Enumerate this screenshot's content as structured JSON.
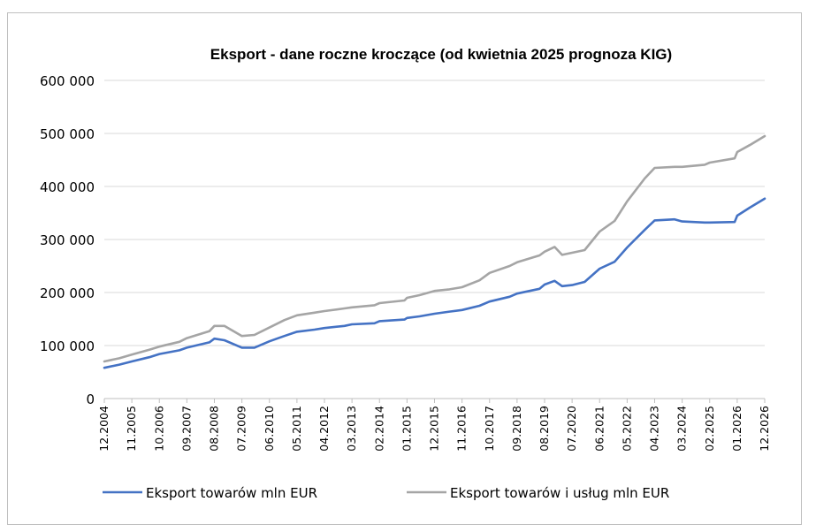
{
  "chart_data": {
    "type": "line",
    "title": "Eksport - dane roczne kroczące (od kwietnia 2025 prognoza KIG)",
    "xlabel": "",
    "ylabel": "",
    "ylim": [
      0,
      600000
    ],
    "y_ticks": [
      0,
      100000,
      200000,
      300000,
      400000,
      500000,
      600000
    ],
    "y_tick_labels": [
      "0",
      "100 000",
      "200 000",
      "300 000",
      "400 000",
      "500 000",
      "600 000"
    ],
    "x_tick_labels": [
      "12.2004",
      "11.2005",
      "10.2006",
      "09.2007",
      "08.2008",
      "07.2009",
      "06.2010",
      "05.2011",
      "04.2012",
      "03.2013",
      "02.2014",
      "01.2015",
      "12.2015",
      "11.2016",
      "10.2017",
      "09.2018",
      "08.2019",
      "07.2020",
      "06.2021",
      "05.2022",
      "04.2023",
      "03.2024",
      "02.2025",
      "01.2026",
      "12.2026"
    ],
    "grid": true,
    "legend_position": "bottom",
    "x": [
      "12.2004",
      "06.2005",
      "11.2005",
      "06.2006",
      "10.2006",
      "06.2007",
      "09.2007",
      "06.2008",
      "08.2008",
      "12.2008",
      "07.2009",
      "12.2009",
      "06.2010",
      "12.2010",
      "05.2011",
      "12.2011",
      "04.2012",
      "12.2012",
      "03.2013",
      "12.2013",
      "02.2014",
      "12.2014",
      "01.2015",
      "06.2015",
      "12.2015",
      "06.2016",
      "11.2016",
      "06.2017",
      "10.2017",
      "06.2018",
      "09.2018",
      "06.2019",
      "08.2019",
      "12.2019",
      "03.2020",
      "07.2020",
      "12.2020",
      "06.2021",
      "12.2021",
      "05.2022",
      "12.2022",
      "04.2023",
      "12.2023",
      "03.2024",
      "12.2024",
      "02.2025",
      "12.2025",
      "01.2026",
      "06.2026",
      "12.2026"
    ],
    "series": [
      {
        "name": "Eksport towarów mln EUR",
        "color": "#4472c4",
        "values": [
          58000,
          64000,
          70000,
          78000,
          84000,
          91000,
          96000,
          106000,
          113000,
          110000,
          96000,
          96000,
          108000,
          118000,
          126000,
          130000,
          133000,
          137000,
          140000,
          142000,
          146000,
          149000,
          152000,
          155000,
          160000,
          164000,
          167000,
          175000,
          183000,
          192000,
          198000,
          207000,
          215000,
          222000,
          212000,
          214000,
          220000,
          245000,
          258000,
          285000,
          318000,
          336000,
          338000,
          334000,
          332000,
          332000,
          333000,
          345000,
          360000,
          377000
        ]
      },
      {
        "name": "Eksport towarów i usług mln EUR",
        "color": "#a5a5a5",
        "values": [
          70000,
          76000,
          83000,
          92000,
          98000,
          107000,
          114000,
          127000,
          137000,
          137000,
          118000,
          120000,
          134000,
          148000,
          157000,
          162000,
          165000,
          170000,
          172000,
          176000,
          180000,
          185000,
          190000,
          195000,
          203000,
          206000,
          210000,
          223000,
          237000,
          250000,
          257000,
          270000,
          277000,
          286000,
          271000,
          275000,
          280000,
          315000,
          335000,
          372000,
          415000,
          435000,
          437000,
          437000,
          441000,
          445000,
          453000,
          465000,
          478000,
          495000
        ]
      }
    ]
  }
}
